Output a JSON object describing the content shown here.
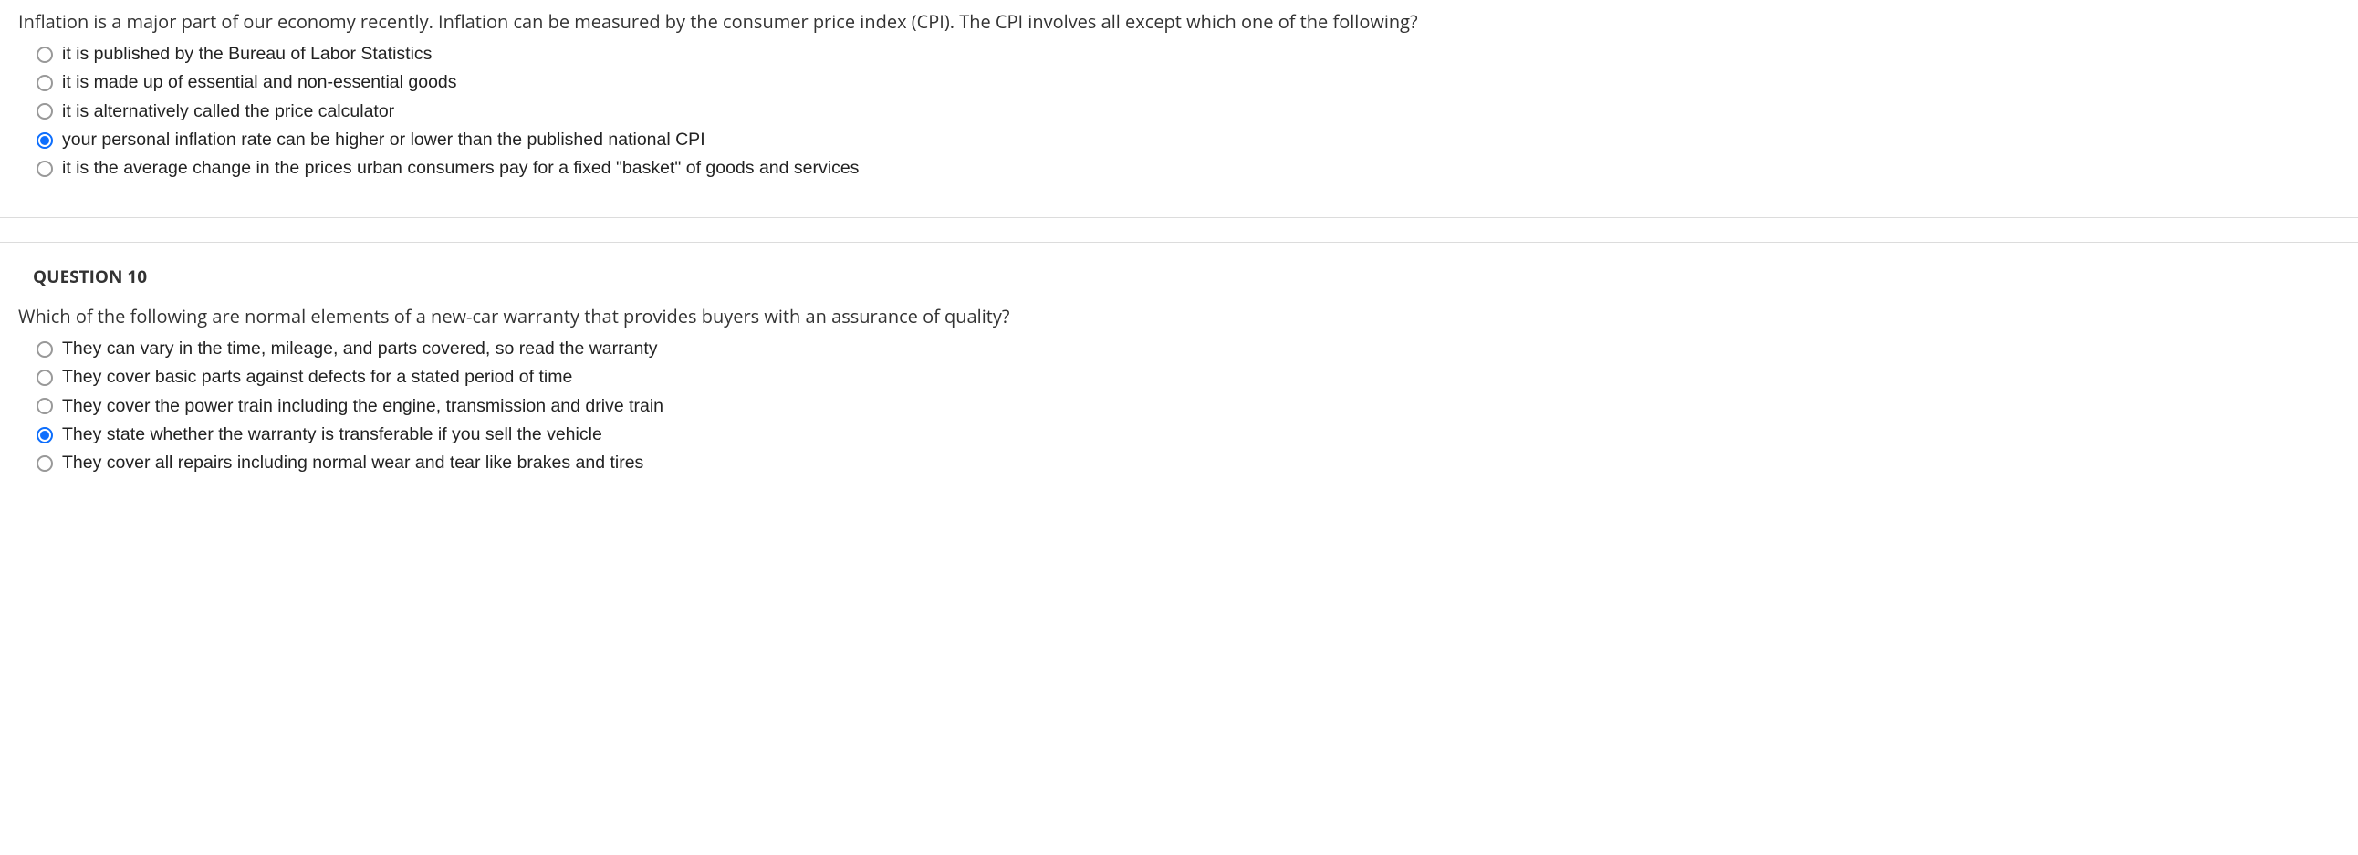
{
  "question9": {
    "prompt": "Inflation is a major part of our economy recently. Inflation can be measured by the consumer price index (CPI). The CPI involves all except which one of the following?",
    "options": [
      {
        "label": "it is published by the Bureau of Labor Statistics",
        "selected": false
      },
      {
        "label": "it is made up of essential and non-essential goods",
        "selected": false
      },
      {
        "label": "it is alternatively called the price calculator",
        "selected": false
      },
      {
        "label": "your personal inflation rate can be higher or lower than the published national CPI",
        "selected": true
      },
      {
        "label": "it is the average change in the prices urban consumers pay for a fixed \"basket\" of goods and services",
        "selected": false
      }
    ]
  },
  "question10": {
    "header": "QUESTION 10",
    "prompt": "Which of the following are normal elements of a new-car warranty that provides buyers with an assurance of quality?",
    "options": [
      {
        "label": "They can vary in the time, mileage, and parts covered, so read the warranty",
        "selected": false
      },
      {
        "label": "They cover basic parts against defects for a stated period of time",
        "selected": false
      },
      {
        "label": "They cover the power train including the engine, transmission and drive train",
        "selected": false
      },
      {
        "label": "They state whether the warranty is transferable if you sell the vehicle",
        "selected": true
      },
      {
        "label": "They cover all repairs including normal wear and tear like brakes and tires",
        "selected": false
      }
    ]
  }
}
